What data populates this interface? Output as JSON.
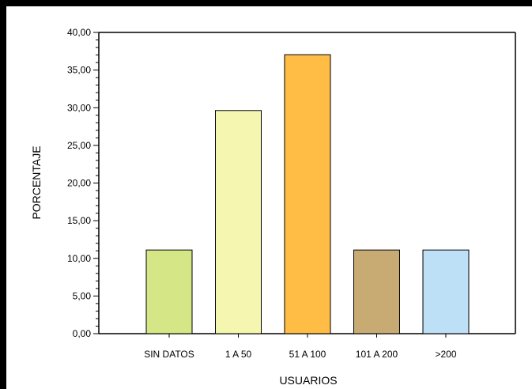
{
  "chart_data": {
    "type": "bar",
    "title": "",
    "xlabel": "USUARIOS",
    "ylabel": "PORCENTAJE",
    "categories": [
      "SIN DATOS",
      "1 A 50",
      "51 A 100",
      "101 A 200",
      ">200"
    ],
    "values": [
      11.11,
      29.63,
      37.04,
      11.11,
      11.11
    ],
    "colors": [
      "#d4e685",
      "#f5f7b0",
      "#ffbd45",
      "#c8aa73",
      "#bde0f7"
    ],
    "ylim": [
      0,
      40
    ],
    "yticks": [
      "0,00",
      "5,00",
      "10,00",
      "15,00",
      "20,00",
      "25,00",
      "30,00",
      "35,00",
      "40,00"
    ],
    "grid": false,
    "legend": "none"
  }
}
